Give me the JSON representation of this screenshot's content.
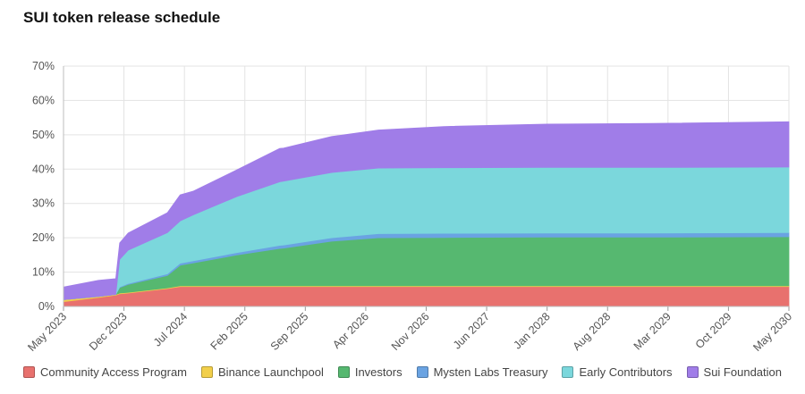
{
  "chart_data": {
    "type": "area",
    "stacked": true,
    "title": "SUI token release schedule",
    "xlabel": "",
    "ylabel": "",
    "ylim": [
      0,
      70
    ],
    "y_ticks": [
      "0%",
      "10%",
      "20%",
      "30%",
      "40%",
      "50%",
      "60%",
      "70%"
    ],
    "x_ticks": [
      "May 2023",
      "Dec 2023",
      "Jul 2024",
      "Feb 2025",
      "Sep 2025",
      "Apr 2026",
      "Nov 2026",
      "Jun 2027",
      "Jan 2028",
      "Aug 2028",
      "Mar 2029",
      "Oct 2029",
      "May 2030"
    ],
    "grid": true,
    "legend_position": "bottom",
    "x": [
      "2023-05-03",
      "2023-09-01",
      "2023-11-01",
      "2023-11-15",
      "2023-12-15",
      "2024-05-01",
      "2024-06-15",
      "2024-08-01",
      "2025-01-01",
      "2025-06-01",
      "2025-06-15",
      "2025-12-01",
      "2026-05-15",
      "2027-01-01",
      "2028-01-01",
      "2029-01-01",
      "2030-05-01"
    ],
    "series": [
      {
        "name": "Community Access Program",
        "color": "#e8716e",
        "values": [
          1.4,
          2.6,
          3.3,
          3.7,
          3.9,
          5.2,
          5.8,
          5.8,
          5.8,
          5.8,
          5.8,
          5.8,
          5.8,
          5.8,
          5.8,
          5.8,
          5.8
        ]
      },
      {
        "name": "Binance Launchpool",
        "color": "#f2cf4a",
        "values": [
          0.6,
          0.3,
          0.2,
          0.2,
          0.2,
          0.2,
          0.2,
          0.2,
          0.2,
          0.2,
          0.2,
          0.2,
          0.2,
          0.2,
          0.2,
          0.2,
          0.2
        ]
      },
      {
        "name": "Investors",
        "color": "#56b870",
        "values": [
          0,
          0,
          0,
          1.6,
          2.3,
          3.6,
          6.0,
          6.7,
          9.0,
          10.9,
          11.0,
          13.0,
          14.0,
          14.1,
          14.2,
          14.2,
          14.3
        ]
      },
      {
        "name": "Mysten Labs Treasury",
        "color": "#6aa3e2",
        "values": [
          0,
          0,
          0,
          0.2,
          0.3,
          0.5,
          0.6,
          0.6,
          0.7,
          0.9,
          0.9,
          1.0,
          1.2,
          1.2,
          1.2,
          1.2,
          1.2
        ]
      },
      {
        "name": "Early Contributors",
        "color": "#7bd7dc",
        "values": [
          0,
          0,
          0,
          8.0,
          9.7,
          12.0,
          12.3,
          13.4,
          16.3,
          18.5,
          18.6,
          19.0,
          19.1,
          19.1,
          19.1,
          19.1,
          19.1
        ]
      },
      {
        "name": "Sui Foundation",
        "color": "#a07de8",
        "values": [
          3.7,
          4.7,
          4.6,
          4.8,
          5.0,
          5.8,
          7.6,
          6.9,
          7.8,
          9.7,
          9.6,
          10.5,
          11.1,
          12.0,
          12.6,
          12.8,
          13.2
        ]
      }
    ]
  }
}
